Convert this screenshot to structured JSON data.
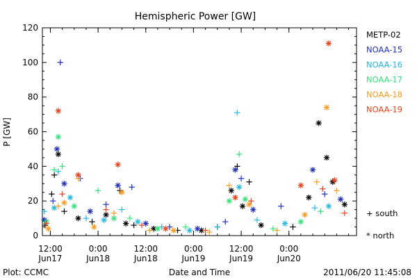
{
  "chart_data": {
    "type": "scatter",
    "title": "Hemispheric Power [GW]",
    "xlabel": "Date and Time",
    "ylabel": "P [GW]",
    "ylim": [
      0,
      120
    ],
    "y_ticks": [
      0,
      20,
      40,
      60,
      80,
      100,
      120
    ],
    "xlim": [
      "2011-06-17 10:00",
      "2011-06-20 17:00"
    ],
    "x_ticks": [
      {
        "time": "2011-06-17 12:00",
        "line1": "12:00",
        "line2": "Jun17"
      },
      {
        "time": "2011-06-18 00:00",
        "line1": "0:00",
        "line2": "Jun18"
      },
      {
        "time": "2011-06-18 12:00",
        "line1": "12:00",
        "line2": "Jun18"
      },
      {
        "time": "2011-06-19 00:00",
        "line1": "0:00",
        "line2": "Jun19"
      },
      {
        "time": "2011-06-19 12:00",
        "line1": "12:00",
        "line2": "Jun19"
      },
      {
        "time": "2011-06-20 00:00",
        "line1": "0:00",
        "line2": "Jun20"
      }
    ],
    "grid": false,
    "legend_position": "right",
    "marker_legend": {
      "south": "+ south",
      "north": "* north"
    },
    "series": [
      {
        "name": "METP-02",
        "color": "#000000",
        "points": [
          {
            "t": "2011-06-17 10:40",
            "v": 6,
            "m": "+"
          },
          {
            "t": "2011-06-17 12:20",
            "v": 24,
            "m": "+"
          },
          {
            "t": "2011-06-17 13:00",
            "v": 35,
            "m": "+"
          },
          {
            "t": "2011-06-17 14:00",
            "v": 47,
            "m": "*"
          },
          {
            "t": "2011-06-17 15:30",
            "v": 14,
            "m": "+"
          },
          {
            "t": "2011-06-17 19:00",
            "v": 10,
            "m": "*"
          },
          {
            "t": "2011-06-17 22:30",
            "v": 8,
            "m": "+"
          },
          {
            "t": "2011-06-18 02:00",
            "v": 12,
            "m": "*"
          },
          {
            "t": "2011-06-18 05:30",
            "v": 26,
            "m": "+"
          },
          {
            "t": "2011-06-18 07:00",
            "v": 7,
            "m": "*"
          },
          {
            "t": "2011-06-18 09:00",
            "v": 6,
            "m": "+"
          },
          {
            "t": "2011-06-18 14:00",
            "v": 4,
            "m": "*"
          },
          {
            "t": "2011-06-18 20:00",
            "v": 3,
            "m": "+"
          },
          {
            "t": "2011-06-19 02:00",
            "v": 3,
            "m": "*"
          },
          {
            "t": "2011-06-19 06:00",
            "v": 5,
            "m": "+"
          },
          {
            "t": "2011-06-19 09:30",
            "v": 26,
            "m": "*"
          },
          {
            "t": "2011-06-19 11:00",
            "v": 40,
            "m": "+"
          },
          {
            "t": "2011-06-19 12:20",
            "v": 17,
            "m": "*"
          },
          {
            "t": "2011-06-19 14:00",
            "v": 31,
            "m": "+"
          },
          {
            "t": "2011-06-19 17:00",
            "v": 6,
            "m": "*"
          },
          {
            "t": "2011-06-20 01:00",
            "v": 5,
            "m": "+"
          },
          {
            "t": "2011-06-20 05:00",
            "v": 22,
            "m": "*"
          },
          {
            "t": "2011-06-20 07:30",
            "v": 65,
            "m": "*"
          },
          {
            "t": "2011-06-20 09:30",
            "v": 45,
            "m": "*"
          },
          {
            "t": "2011-06-20 11:00",
            "v": 31,
            "m": "*"
          },
          {
            "t": "2011-06-20 14:00",
            "v": 18,
            "m": "*"
          }
        ]
      },
      {
        "name": "NOAA-15",
        "color": "#1e2ebc",
        "points": [
          {
            "t": "2011-06-17 10:30",
            "v": 9,
            "m": "*"
          },
          {
            "t": "2011-06-17 12:40",
            "v": 20,
            "m": "+"
          },
          {
            "t": "2011-06-17 13:40",
            "v": 50,
            "m": "*"
          },
          {
            "t": "2011-06-17 14:30",
            "v": 100,
            "m": "+"
          },
          {
            "t": "2011-06-17 15:30",
            "v": 30,
            "m": "*"
          },
          {
            "t": "2011-06-17 19:30",
            "v": 33,
            "m": "+"
          },
          {
            "t": "2011-06-17 22:00",
            "v": 14,
            "m": "*"
          },
          {
            "t": "2011-06-18 02:00",
            "v": 18,
            "m": "+"
          },
          {
            "t": "2011-06-18 05:00",
            "v": 29,
            "m": "*"
          },
          {
            "t": "2011-06-18 08:30",
            "v": 28,
            "m": "+"
          },
          {
            "t": "2011-06-18 12:00",
            "v": 7,
            "m": "*"
          },
          {
            "t": "2011-06-18 18:00",
            "v": 5,
            "m": "+"
          },
          {
            "t": "2011-06-19 01:00",
            "v": 4,
            "m": "*"
          },
          {
            "t": "2011-06-19 08:00",
            "v": 8,
            "m": "+"
          },
          {
            "t": "2011-06-19 10:30",
            "v": 38,
            "m": "*"
          },
          {
            "t": "2011-06-19 12:00",
            "v": 33,
            "m": "+"
          },
          {
            "t": "2011-06-19 15:00",
            "v": 15,
            "m": "*"
          },
          {
            "t": "2011-06-19 22:00",
            "v": 17,
            "m": "+"
          },
          {
            "t": "2011-06-20 06:00",
            "v": 38,
            "m": "*"
          },
          {
            "t": "2011-06-20 09:00",
            "v": 24,
            "m": "+"
          },
          {
            "t": "2011-06-20 13:00",
            "v": 21,
            "m": "*"
          }
        ]
      },
      {
        "name": "NOAA-16",
        "color": "#22b8e0",
        "points": [
          {
            "t": "2011-06-17 10:30",
            "v": 14,
            "m": "+"
          },
          {
            "t": "2011-06-17 13:00",
            "v": 16,
            "m": "*"
          },
          {
            "t": "2011-06-17 14:00",
            "v": 37,
            "m": "+"
          },
          {
            "t": "2011-06-17 17:00",
            "v": 22,
            "m": "*"
          },
          {
            "t": "2011-06-17 21:00",
            "v": 10,
            "m": "+"
          },
          {
            "t": "2011-06-18 01:30",
            "v": 9,
            "m": "*"
          },
          {
            "t": "2011-06-18 06:00",
            "v": 15,
            "m": "+"
          },
          {
            "t": "2011-06-18 10:00",
            "v": 8,
            "m": "*"
          },
          {
            "t": "2011-06-18 16:00",
            "v": 5,
            "m": "+"
          },
          {
            "t": "2011-06-18 23:00",
            "v": 3,
            "m": "*"
          },
          {
            "t": "2011-06-19 06:00",
            "v": 5,
            "m": "+"
          },
          {
            "t": "2011-06-19 11:00",
            "v": 71,
            "m": "+"
          },
          {
            "t": "2011-06-19 11:30",
            "v": 28,
            "m": "*"
          },
          {
            "t": "2011-06-19 16:00",
            "v": 9,
            "m": "+"
          },
          {
            "t": "2011-06-19 23:00",
            "v": 7,
            "m": "*"
          },
          {
            "t": "2011-06-20 06:30",
            "v": 16,
            "m": "+"
          },
          {
            "t": "2011-06-20 10:00",
            "v": 17,
            "m": "*"
          }
        ]
      },
      {
        "name": "NOAA-17",
        "color": "#33e07a",
        "points": [
          {
            "t": "2011-06-17 11:00",
            "v": 8,
            "m": "*"
          },
          {
            "t": "2011-06-17 13:00",
            "v": 38,
            "m": "+"
          },
          {
            "t": "2011-06-17 14:00",
            "v": 57,
            "m": "*"
          },
          {
            "t": "2011-06-17 15:00",
            "v": 40,
            "m": "+"
          },
          {
            "t": "2011-06-17 18:00",
            "v": 17,
            "m": "*"
          },
          {
            "t": "2011-06-18 00:00",
            "v": 26,
            "m": "+"
          },
          {
            "t": "2011-06-18 04:00",
            "v": 10,
            "m": "*"
          },
          {
            "t": "2011-06-18 08:00",
            "v": 10,
            "m": "+"
          },
          {
            "t": "2011-06-18 15:00",
            "v": 4,
            "m": "*"
          },
          {
            "t": "2011-06-18 22:00",
            "v": 5,
            "m": "+"
          },
          {
            "t": "2011-06-19 09:00",
            "v": 20,
            "m": "*"
          },
          {
            "t": "2011-06-19 11:30",
            "v": 47,
            "m": "+"
          },
          {
            "t": "2011-06-19 13:00",
            "v": 21,
            "m": "*"
          },
          {
            "t": "2011-06-19 20:00",
            "v": 4,
            "m": "+"
          },
          {
            "t": "2011-06-20 03:00",
            "v": 8,
            "m": "*"
          },
          {
            "t": "2011-06-20 08:00",
            "v": 14,
            "m": "+"
          }
        ]
      },
      {
        "name": "NOAA-18",
        "color": "#ff9a1a",
        "points": [
          {
            "t": "2011-06-17 11:30",
            "v": 4,
            "m": "*"
          },
          {
            "t": "2011-06-17 14:00",
            "v": 17,
            "m": "+"
          },
          {
            "t": "2011-06-17 15:30",
            "v": 19,
            "m": "*"
          },
          {
            "t": "2011-06-17 19:00",
            "v": 33,
            "m": "+"
          },
          {
            "t": "2011-06-17 23:00",
            "v": 5,
            "m": "*"
          },
          {
            "t": "2011-06-18 04:00",
            "v": 13,
            "m": "+"
          },
          {
            "t": "2011-06-18 06:00",
            "v": 25,
            "m": "*"
          },
          {
            "t": "2011-06-18 13:00",
            "v": 3,
            "m": "+"
          },
          {
            "t": "2011-06-18 19:00",
            "v": 3,
            "m": "*"
          },
          {
            "t": "2011-06-19 04:00",
            "v": 2,
            "m": "+"
          },
          {
            "t": "2011-06-19 09:00",
            "v": 29,
            "m": "+"
          },
          {
            "t": "2011-06-19 14:00",
            "v": 18,
            "m": "*"
          },
          {
            "t": "2011-06-19 21:00",
            "v": 3,
            "m": "+"
          },
          {
            "t": "2011-06-20 04:00",
            "v": 12,
            "m": "*"
          },
          {
            "t": "2011-06-20 07:00",
            "v": 31,
            "m": "+"
          },
          {
            "t": "2011-06-20 09:30",
            "v": 74,
            "m": "*"
          },
          {
            "t": "2011-06-20 12:00",
            "v": 26,
            "m": "+"
          }
        ]
      },
      {
        "name": "NOAA-19",
        "color": "#e8411a",
        "points": [
          {
            "t": "2011-06-17 11:00",
            "v": 7,
            "m": "+"
          },
          {
            "t": "2011-06-17 14:00",
            "v": 72,
            "m": "*"
          },
          {
            "t": "2011-06-17 15:00",
            "v": 24,
            "m": "+"
          },
          {
            "t": "2011-06-17 19:00",
            "v": 35,
            "m": "*"
          },
          {
            "t": "2011-06-18 02:00",
            "v": 15,
            "m": "+"
          },
          {
            "t": "2011-06-18 05:00",
            "v": 41,
            "m": "*"
          },
          {
            "t": "2011-06-18 11:00",
            "v": 6,
            "m": "+"
          },
          {
            "t": "2011-06-18 17:00",
            "v": 4,
            "m": "*"
          },
          {
            "t": "2011-06-19 03:00",
            "v": 3,
            "m": "+"
          },
          {
            "t": "2011-06-19 10:30",
            "v": 22,
            "m": "*"
          },
          {
            "t": "2011-06-19 14:30",
            "v": 20,
            "m": "+"
          },
          {
            "t": "2011-06-20 03:00",
            "v": 29,
            "m": "*"
          },
          {
            "t": "2011-06-20 08:30",
            "v": 27,
            "m": "+"
          },
          {
            "t": "2011-06-20 10:00",
            "v": 111,
            "m": "*"
          },
          {
            "t": "2011-06-20 11:30",
            "v": 32,
            "m": "*"
          },
          {
            "t": "2011-06-20 14:00",
            "v": 13,
            "m": "+"
          }
        ]
      }
    ]
  },
  "footer": {
    "left": "Plot: CCMC",
    "right": "2011/06/20 11:45:08"
  }
}
